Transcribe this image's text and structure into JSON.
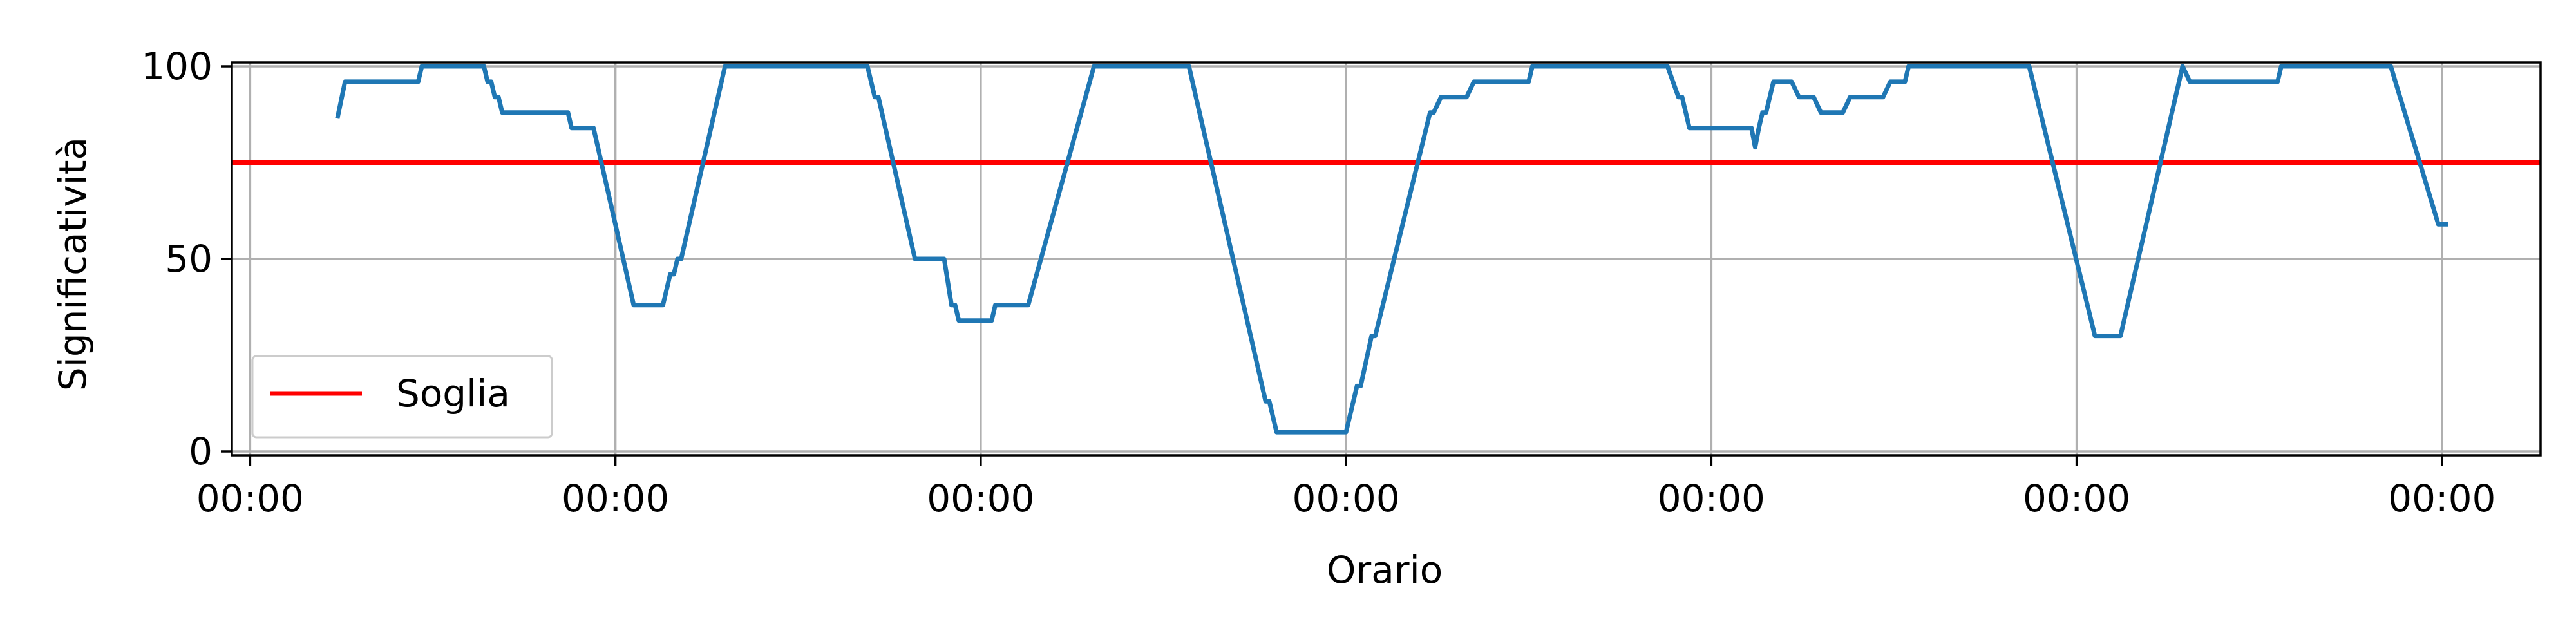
{
  "chart_data": {
    "type": "line",
    "title": "",
    "xlabel": "Orario",
    "ylabel": "Significatività",
    "x_tick_labels": [
      "00:00",
      "00:00",
      "00:00",
      "00:00",
      "00:00",
      "00:00",
      "00:00"
    ],
    "x_ticks": [
      0,
      1,
      2,
      3,
      4,
      5,
      6
    ],
    "xlim": [
      -0.05,
      6.27
    ],
    "y_ticks": [
      0,
      50,
      100
    ],
    "y_tick_labels": [
      "0",
      "50",
      "100"
    ],
    "ylim": [
      -1,
      101
    ],
    "grid": true,
    "legend": {
      "placement": "lower-left",
      "entries": [
        "Soglia"
      ]
    },
    "threshold": {
      "name": "Soglia",
      "value": 75,
      "color": "#ff0000"
    },
    "series": [
      {
        "name": "",
        "color": "#1f77b4",
        "points": [
          [
            0.24,
            87
          ],
          [
            0.26,
            96
          ],
          [
            0.3,
            96
          ],
          [
            0.46,
            96
          ],
          [
            0.47,
            100
          ],
          [
            0.64,
            100
          ],
          [
            0.65,
            96
          ],
          [
            0.66,
            96
          ],
          [
            0.67,
            92
          ],
          [
            0.68,
            92
          ],
          [
            0.69,
            88
          ],
          [
            0.87,
            88
          ],
          [
            0.88,
            84
          ],
          [
            0.94,
            84
          ],
          [
            1.05,
            38
          ],
          [
            1.13,
            38
          ],
          [
            1.15,
            46
          ],
          [
            1.16,
            46
          ],
          [
            1.17,
            50
          ],
          [
            1.18,
            50
          ],
          [
            1.3,
            100
          ],
          [
            1.69,
            100
          ],
          [
            1.71,
            92
          ],
          [
            1.72,
            92
          ],
          [
            1.82,
            50
          ],
          [
            1.9,
            50
          ],
          [
            1.92,
            38
          ],
          [
            1.93,
            38
          ],
          [
            1.94,
            34
          ],
          [
            2.03,
            34
          ],
          [
            2.04,
            38
          ],
          [
            2.13,
            38
          ],
          [
            2.31,
            100
          ],
          [
            2.57,
            100
          ],
          [
            2.78,
            13
          ],
          [
            2.79,
            13
          ],
          [
            2.81,
            5
          ],
          [
            3.0,
            5
          ],
          [
            3.03,
            17
          ],
          [
            3.04,
            17
          ],
          [
            3.07,
            30
          ],
          [
            3.08,
            30
          ],
          [
            3.23,
            88
          ],
          [
            3.24,
            88
          ],
          [
            3.26,
            92
          ],
          [
            3.33,
            92
          ],
          [
            3.35,
            96
          ],
          [
            3.5,
            96
          ],
          [
            3.51,
            100
          ],
          [
            3.88,
            100
          ],
          [
            3.91,
            92
          ],
          [
            3.92,
            92
          ],
          [
            3.94,
            84
          ],
          [
            4.11,
            84
          ],
          [
            4.12,
            79
          ],
          [
            4.13,
            84
          ],
          [
            4.14,
            88
          ],
          [
            4.15,
            88
          ],
          [
            4.17,
            96
          ],
          [
            4.22,
            96
          ],
          [
            4.24,
            92
          ],
          [
            4.28,
            92
          ],
          [
            4.3,
            88
          ],
          [
            4.36,
            88
          ],
          [
            4.38,
            92
          ],
          [
            4.47,
            92
          ],
          [
            4.49,
            96
          ],
          [
            4.53,
            96
          ],
          [
            4.54,
            100
          ],
          [
            4.87,
            100
          ],
          [
            5.05,
            30
          ],
          [
            5.12,
            30
          ],
          [
            5.29,
            100
          ],
          [
            5.31,
            96
          ],
          [
            5.55,
            96
          ],
          [
            5.56,
            100
          ],
          [
            5.86,
            100
          ],
          [
            5.99,
            59
          ],
          [
            6.01,
            59
          ]
        ]
      }
    ]
  }
}
